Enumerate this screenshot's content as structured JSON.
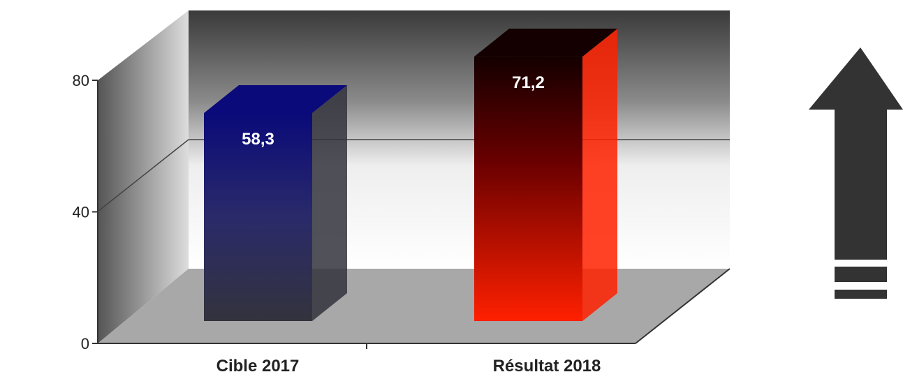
{
  "chart_data": {
    "type": "bar",
    "categories": [
      "Cible 2017",
      "Résultat 2018"
    ],
    "values": [
      58.3,
      71.2
    ],
    "data_labels": [
      "58,3",
      "71,2"
    ],
    "yticks": [
      0,
      40,
      80
    ],
    "ylim": [
      0,
      80
    ],
    "grid": true,
    "bar_colors": [
      {
        "top": "#0a0a7a",
        "mid": "#2a2a6a",
        "bottom": "#33333d"
      },
      {
        "top": "#140000",
        "mid": "#6a0000",
        "bottom": "#ff2000"
      }
    ]
  },
  "icon": {
    "name": "up-arrow-icon",
    "color": "#333333"
  }
}
